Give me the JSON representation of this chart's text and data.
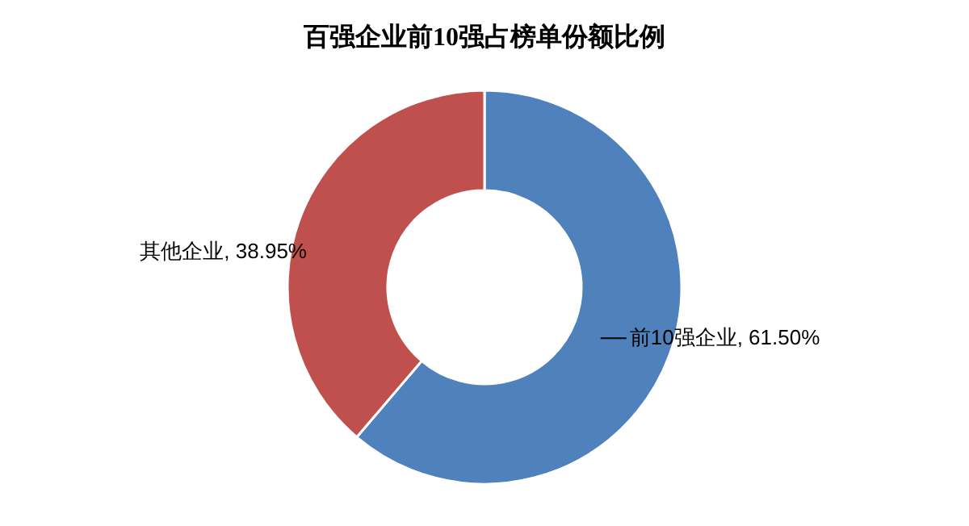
{
  "chart_data": {
    "type": "donut",
    "title": "百强企业前10强占榜单份额比例",
    "categories": [
      "前10强企业",
      "其他企业"
    ],
    "values": [
      61.5,
      38.95
    ],
    "value_labels": [
      "61.50%",
      "38.95%"
    ],
    "colors": [
      "#4f81bd",
      "#c0504d"
    ]
  }
}
